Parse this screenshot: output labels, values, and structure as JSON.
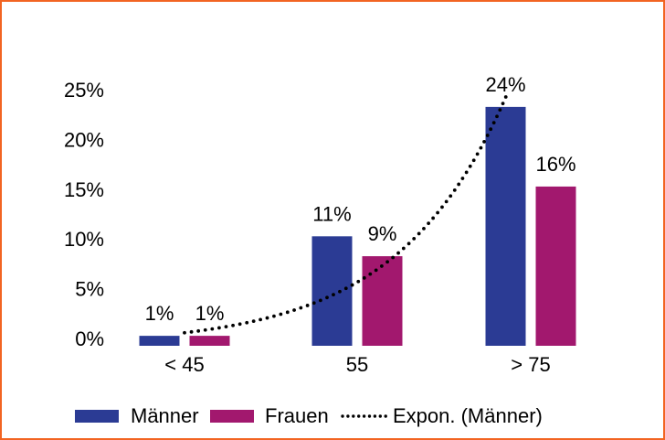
{
  "frame": {
    "border_color": "#F26422",
    "background_color": "#FFFFFF"
  },
  "chart_data": {
    "type": "bar",
    "categories": [
      "< 45",
      "55",
      "> 75"
    ],
    "series": [
      {
        "name": "Männer",
        "color": "#2B3B94",
        "values": [
          1,
          11,
          24
        ],
        "labels": [
          "1%",
          "11%",
          "24%"
        ]
      },
      {
        "name": "Frauen",
        "color": "#A2186E",
        "values": [
          1,
          9,
          16
        ],
        "labels": [
          "1%",
          "9%",
          "16%"
        ]
      }
    ],
    "yticks": [
      "0%",
      "5%",
      "10%",
      "15%",
      "20%",
      "25%"
    ],
    "ytick_values": [
      0,
      5,
      10,
      15,
      20,
      25
    ],
    "ylim": [
      0,
      25.4
    ],
    "grid": false,
    "axis_lines": false,
    "title": "",
    "xlabel": "",
    "ylabel": "",
    "legend": {
      "position": "bottom",
      "entries": [
        {
          "label": "Männer",
          "marker": "swatch",
          "color": "#2B3B94"
        },
        {
          "label": "Frauen",
          "marker": "swatch",
          "color": "#A2186E"
        },
        {
          "label": "Expon. (Männer)",
          "marker": "dotted-line",
          "color": "#000000"
        }
      ]
    },
    "trendline": {
      "type": "exponential",
      "series": "Männer",
      "label": "Expon. (Männer)",
      "color": "#000000",
      "style": "dotted"
    }
  }
}
